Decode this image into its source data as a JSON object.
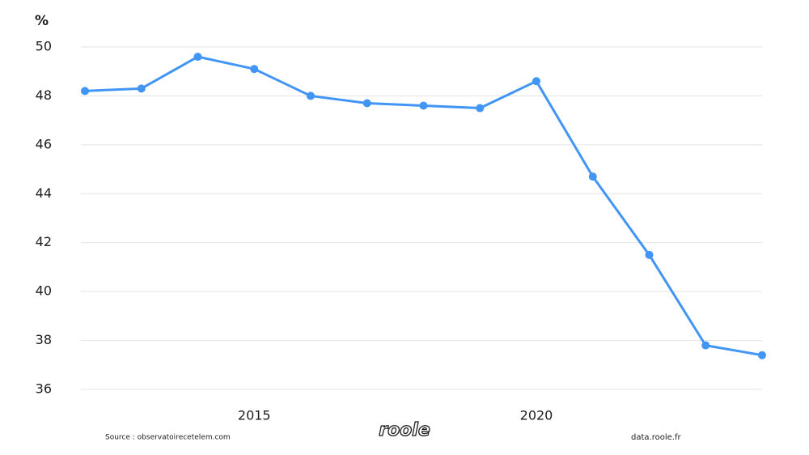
{
  "chart_data": {
    "type": "line",
    "y_label": "%",
    "x": [
      2012,
      2013,
      2014,
      2015,
      2016,
      2017,
      2018,
      2019,
      2020,
      2021,
      2022,
      2023,
      2024
    ],
    "series": [
      {
        "color": "#4195f5",
        "values": [
          48.2,
          48.3,
          49.6,
          49.1,
          48.0,
          47.7,
          47.6,
          47.5,
          48.6,
          44.7,
          41.5,
          37.8,
          37.4
        ]
      }
    ],
    "xlim": [
      2012,
      2024
    ],
    "xticks": [
      2015,
      2020
    ],
    "ylim": [
      36,
      50
    ],
    "yticks": [
      36,
      38,
      40,
      42,
      44,
      46,
      48,
      50
    ],
    "grid": true
  },
  "footer": {
    "source": "Source : observatoirecetelem.com",
    "logo": "roole",
    "site": "data.roole.fr"
  }
}
